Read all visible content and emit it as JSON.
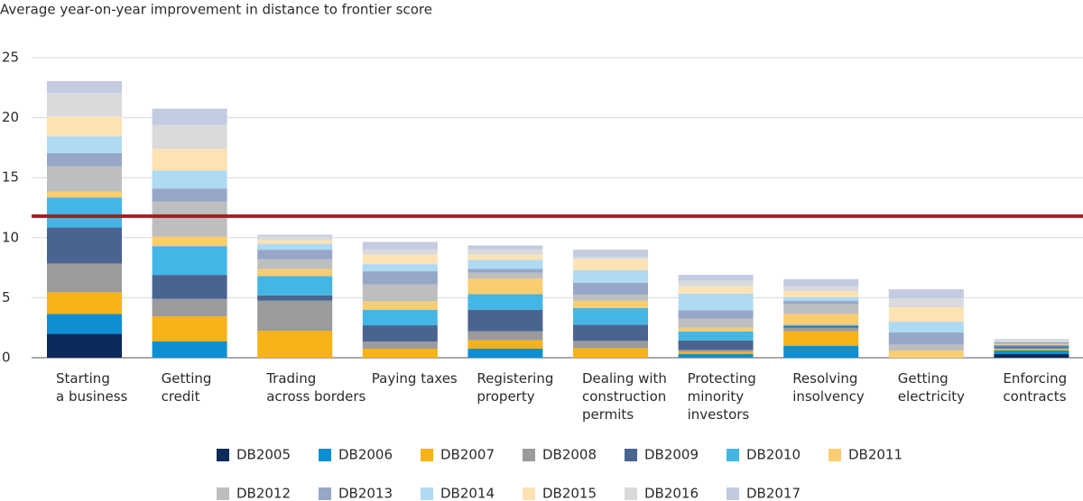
{
  "chart_data": {
    "type": "stacked_bar",
    "title": "Average year-on-year improvement in distance to frontier score",
    "categories": [
      "Starting\na business",
      "Getting\ncredit",
      "Trading\nacross borders",
      "Paying taxes",
      "Registering\nproperty",
      "Dealing with\nconstruction\npermits",
      "Protecting\nminority\ninvestors",
      "Resolving\ninsolvency",
      "Getting\nelectricity",
      "Enforcing\ncontracts"
    ],
    "ylim": [
      0,
      25
    ],
    "yticks": [
      0,
      5,
      10,
      15,
      20,
      25
    ],
    "grid": true,
    "reference_line": {
      "value": 11.8,
      "color": "#a51d24"
    },
    "series": [
      {
        "name": "DB2005",
        "color": "#0c2a5a",
        "values": [
          2.0,
          0,
          0,
          0,
          0,
          0,
          0,
          0,
          0,
          0.3
        ]
      },
      {
        "name": "DB2006",
        "color": "#0f8fd3",
        "values": [
          1.65,
          1.35,
          0,
          0,
          0.75,
          0,
          0.3,
          1.0,
          0,
          0.3
        ]
      },
      {
        "name": "DB2007",
        "color": "#f7b217",
        "values": [
          1.8,
          2.1,
          2.25,
          0.75,
          0.7,
          0.8,
          0.2,
          1.2,
          0,
          0.1
        ]
      },
      {
        "name": "DB2008",
        "color": "#9a9b9d",
        "values": [
          2.4,
          1.45,
          2.5,
          0.6,
          0.75,
          0.6,
          0.15,
          0.3,
          0,
          0.1
        ]
      },
      {
        "name": "DB2009",
        "color": "#4a6490",
        "values": [
          3.0,
          2.0,
          0.45,
          1.35,
          1.8,
          1.35,
          0.8,
          0.15,
          0,
          0.15
        ]
      },
      {
        "name": "DB2010",
        "color": "#44b6e6",
        "values": [
          2.5,
          2.4,
          1.6,
          1.3,
          1.3,
          1.4,
          0.75,
          0.1,
          0,
          0.1
        ]
      },
      {
        "name": "DB2011",
        "color": "#fbcd71",
        "values": [
          0.5,
          0.8,
          0.6,
          0.7,
          1.3,
          0.6,
          0.3,
          0.9,
          0.6,
          0.05
        ]
      },
      {
        "name": "DB2012",
        "color": "#bdbec0",
        "values": [
          2.1,
          2.9,
          0.8,
          1.4,
          0.5,
          0.5,
          0.75,
          0.8,
          0.5,
          0.1
        ]
      },
      {
        "name": "DB2013",
        "color": "#97a7c7",
        "values": [
          1.1,
          1.1,
          0.8,
          1.1,
          0.3,
          1.0,
          0.7,
          0.3,
          1.0,
          0.1
        ]
      },
      {
        "name": "DB2014",
        "color": "#aedaf3",
        "values": [
          1.4,
          1.5,
          0.5,
          0.6,
          0.75,
          1.05,
          1.4,
          0.3,
          0.9,
          0.05
        ]
      },
      {
        "name": "DB2015",
        "color": "#fde2b3",
        "values": [
          1.65,
          1.8,
          0.3,
          0.8,
          0.45,
          0.9,
          0.6,
          0.5,
          1.2,
          0.05
        ]
      },
      {
        "name": "DB2016",
        "color": "#d9dadb",
        "values": [
          1.95,
          2.0,
          0.3,
          0.45,
          0.45,
          0.2,
          0.45,
          0.4,
          0.75,
          0.05
        ]
      },
      {
        "name": "DB2017",
        "color": "#c3cbe0",
        "values": [
          1.0,
          1.35,
          0.15,
          0.6,
          0.3,
          0.6,
          0.5,
          0.6,
          0.75,
          0.1
        ]
      }
    ]
  }
}
